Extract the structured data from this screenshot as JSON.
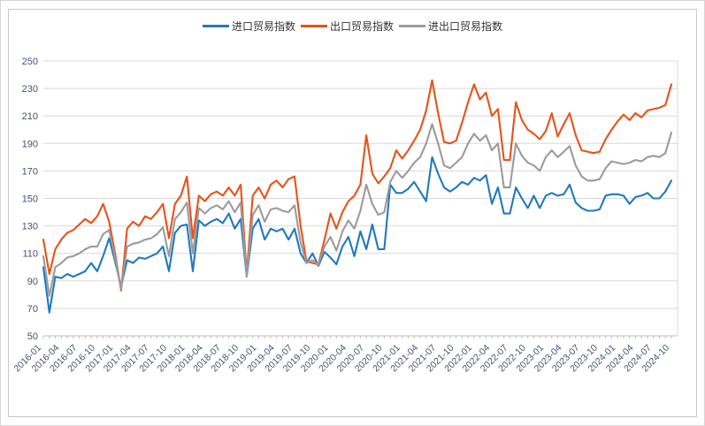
{
  "legend": {
    "position": "top-center",
    "items_note": "three line-series legend entries"
  },
  "chart_data": {
    "type": "line",
    "title": "",
    "xlabel": "",
    "ylabel": "",
    "ylim": [
      50,
      250
    ],
    "y_ticks": [
      50,
      70,
      90,
      110,
      130,
      150,
      170,
      190,
      210,
      230,
      250
    ],
    "grid": true,
    "legend_position": "top",
    "x_tick_labels": [
      "2016-01",
      "2016-04",
      "2016-07",
      "2016-10",
      "2017-01",
      "2017-04",
      "2017-07",
      "2017-10",
      "2018-01",
      "2018-04",
      "2018-07",
      "2018-10",
      "2019-01",
      "2019-04",
      "2019-07",
      "2019-10",
      "2020-01",
      "2020-04",
      "2020-07",
      "2020-10",
      "2021-01",
      "2021-04",
      "2021-07",
      "2021-10",
      "2022-01",
      "2022-04",
      "2022-07",
      "2022-10",
      "2023-01",
      "2023-04",
      "2023-07",
      "2023-10",
      "2024-01",
      "2024-04",
      "2024-07",
      "2024-10"
    ],
    "x_frequency": "monthly",
    "x_range": [
      "2016-01",
      "2024-10"
    ],
    "series": [
      {
        "name": "进口贸易指数",
        "color": "#2079c0",
        "values": [
          100,
          67,
          93,
          92,
          95,
          93,
          95,
          97,
          103,
          97,
          108,
          121,
          104,
          86,
          105,
          103,
          107,
          106,
          108,
          110,
          115,
          97,
          125,
          130,
          131,
          97,
          134,
          130,
          133,
          135,
          132,
          139,
          128,
          135,
          93,
          128,
          135,
          120,
          128,
          126,
          128,
          120,
          128,
          110,
          103,
          110,
          101,
          111,
          107,
          102,
          115,
          122,
          108,
          126,
          113,
          131,
          113,
          113,
          160,
          154,
          154,
          157,
          162,
          155,
          148,
          180,
          168,
          158,
          155,
          158,
          162,
          160,
          165,
          163,
          167,
          146,
          158,
          139,
          139,
          158,
          150,
          143,
          152,
          143,
          152,
          154,
          152,
          153,
          160,
          147,
          143,
          141,
          141,
          142,
          152,
          153,
          153,
          152,
          146,
          151,
          152,
          154,
          150,
          150,
          155,
          163
        ]
      },
      {
        "name": "出口贸易指数",
        "color": "#e8521a",
        "values": [
          120,
          95,
          113,
          120,
          125,
          127,
          131,
          135,
          132,
          137,
          146,
          133,
          110,
          83,
          128,
          133,
          130,
          137,
          135,
          140,
          146,
          121,
          146,
          152,
          166,
          121,
          152,
          148,
          153,
          155,
          152,
          158,
          152,
          160,
          95,
          152,
          158,
          150,
          160,
          163,
          158,
          164,
          166,
          130,
          104,
          103,
          102,
          120,
          139,
          128,
          140,
          148,
          152,
          160,
          196,
          168,
          161,
          166,
          172,
          185,
          179,
          185,
          192,
          200,
          214,
          236,
          212,
          191,
          190,
          192,
          205,
          220,
          233,
          222,
          227,
          210,
          215,
          178,
          178,
          220,
          207,
          200,
          197,
          193,
          199,
          212,
          195,
          204,
          212,
          196,
          185,
          184,
          183,
          184,
          193,
          200,
          206,
          211,
          207,
          212,
          209,
          214,
          215,
          216,
          218,
          233
        ]
      },
      {
        "name": "进出口贸易指数",
        "color": "#9b9b9b",
        "values": [
          108,
          79,
          100,
          103,
          107,
          108,
          110,
          113,
          115,
          115,
          124,
          127,
          107,
          84,
          115,
          117,
          118,
          120,
          121,
          124,
          129,
          108,
          135,
          140,
          147,
          110,
          143,
          139,
          143,
          145,
          142,
          148,
          140,
          147,
          93,
          138,
          145,
          133,
          142,
          143,
          141,
          140,
          145,
          118,
          103,
          105,
          102,
          115,
          122,
          112,
          126,
          134,
          128,
          141,
          160,
          146,
          138,
          140,
          162,
          170,
          165,
          170,
          176,
          180,
          190,
          204,
          190,
          174,
          172,
          176,
          180,
          190,
          197,
          192,
          196,
          185,
          190,
          158,
          158,
          190,
          181,
          176,
          174,
          170,
          180,
          185,
          180,
          184,
          188,
          174,
          166,
          163,
          163,
          164,
          172,
          177,
          176,
          175,
          176,
          178,
          177,
          180,
          181,
          180,
          183,
          198
        ]
      }
    ],
    "style": {
      "gridline_color": "#d9d9d9",
      "axis_color": "#bfbfbf",
      "tick_label_color": "#44546a",
      "legend_text_color": "#333333",
      "background": "#ffffff"
    }
  }
}
